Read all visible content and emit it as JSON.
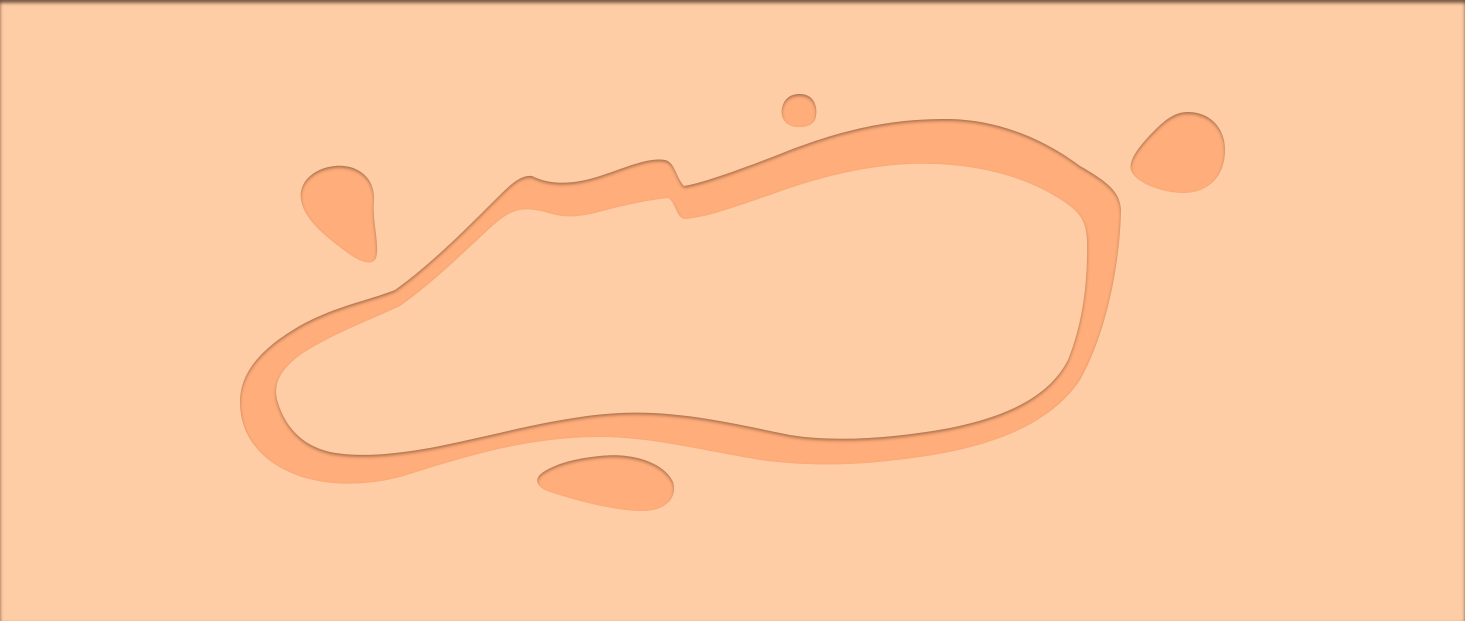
{
  "scene": {
    "background_color": "#fecda5",
    "cutout_color": "#ffad7a",
    "inner_land_color": "#fecda5",
    "shadow_color": "#8a5a3c"
  }
}
